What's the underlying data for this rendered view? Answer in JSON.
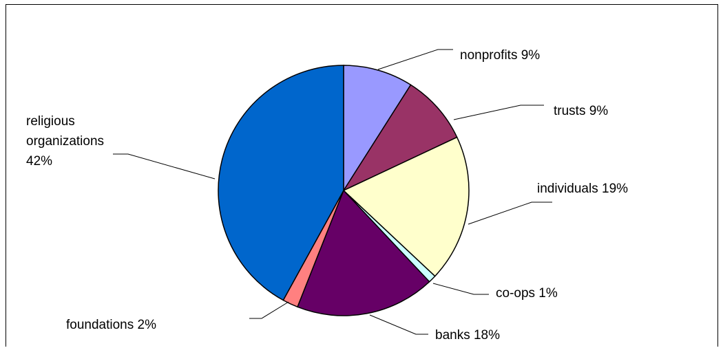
{
  "chart_data": {
    "type": "pie",
    "title": "",
    "start": "12 o'clock",
    "direction": "clockwise",
    "slices": [
      {
        "category": "nonprofits",
        "value": 9,
        "label": "nonprofits 9%",
        "color": "#9999ff",
        "label_lines": [
          "nonprofits 9%"
        ]
      },
      {
        "category": "trusts",
        "value": 9,
        "label": "trusts 9%",
        "color": "#993366",
        "label_lines": [
          "trusts 9%"
        ]
      },
      {
        "category": "individuals",
        "value": 19,
        "label": "individuals 19%",
        "color": "#ffffcc",
        "label_lines": [
          "individuals 19%"
        ]
      },
      {
        "category": "co-ops",
        "value": 1,
        "label": "co-ops 1%",
        "color": "#ccffff",
        "label_lines": [
          "co-ops 1%"
        ]
      },
      {
        "category": "banks",
        "value": 18,
        "label": "banks 18%",
        "color": "#660066",
        "label_lines": [
          "banks 18%"
        ]
      },
      {
        "category": "foundations",
        "value": 2,
        "label": "foundations 2%",
        "color": "#ff8080",
        "label_lines": [
          "foundations 2%"
        ]
      },
      {
        "category": "religious organizations",
        "value": 42,
        "label": "religious organizations 42%",
        "color": "#0066cc",
        "label_lines": [
          "religious",
          "organizations",
          "42%"
        ]
      }
    ]
  }
}
